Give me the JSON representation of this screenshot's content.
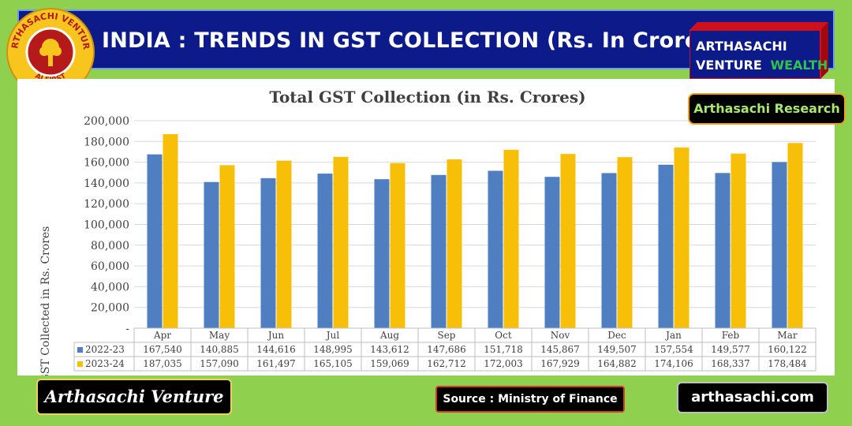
{
  "banner": {
    "title": "INDIA : TRENDS IN GST COLLECTION (Rs. In Crore)"
  },
  "logo": {
    "text_top": "ARTHASACHI VENTURE",
    "text_bottom": "AI FIRST",
    "accent": "#e02020"
  },
  "brand": {
    "line1": "ARTHASACHI",
    "line2a": "VENTURE",
    "line2b": "WEALTH",
    "bg": "#0c1a8a",
    "wealth_color": "#2ec44a"
  },
  "research_label": "Arthasachi Research",
  "footer": {
    "venture_label": "Arthasachi Venture",
    "source_label": "Source :  Ministry of Finance",
    "site_label": "arthasachi.com"
  },
  "chart_data": {
    "type": "bar",
    "title": "Total GST Collection (in Rs. Crores)",
    "ylabel": "GST Collected in Rs. Crores",
    "xlabel": "",
    "ylim": [
      0,
      200000
    ],
    "yticks": [
      "-",
      "20,000",
      "40,000",
      "60,000",
      "80,000",
      "100,000",
      "120,000",
      "140,000",
      "160,000",
      "180,000",
      "200,000"
    ],
    "grid": true,
    "categories": [
      "Apr",
      "May",
      "Jun",
      "Jul",
      "Aug",
      "Sep",
      "Oct",
      "Nov",
      "Dec",
      "Jan",
      "Feb",
      "Mar"
    ],
    "series": [
      {
        "name": "2022-23",
        "color": "#4f7fc0",
        "values": [
          167540,
          140885,
          144616,
          148995,
          143612,
          147686,
          151718,
          145867,
          149507,
          157554,
          149577,
          160122
        ],
        "labels": [
          "167,540",
          "140,885",
          "144,616",
          "148,995",
          "143,612",
          "147,686",
          "151,718",
          "145,867",
          "149,507",
          "157,554",
          "149,577",
          "160,122"
        ]
      },
      {
        "name": "2023-24",
        "color": "#f7bf07",
        "values": [
          187035,
          157090,
          161497,
          165105,
          159069,
          162712,
          172003,
          167929,
          164882,
          174106,
          168337,
          178484
        ],
        "labels": [
          "187,035",
          "157,090",
          "161,497",
          "165,105",
          "159,069",
          "162,712",
          "172,003",
          "167,929",
          "164,882",
          "174,106",
          "168,337",
          "178,484"
        ]
      }
    ]
  }
}
